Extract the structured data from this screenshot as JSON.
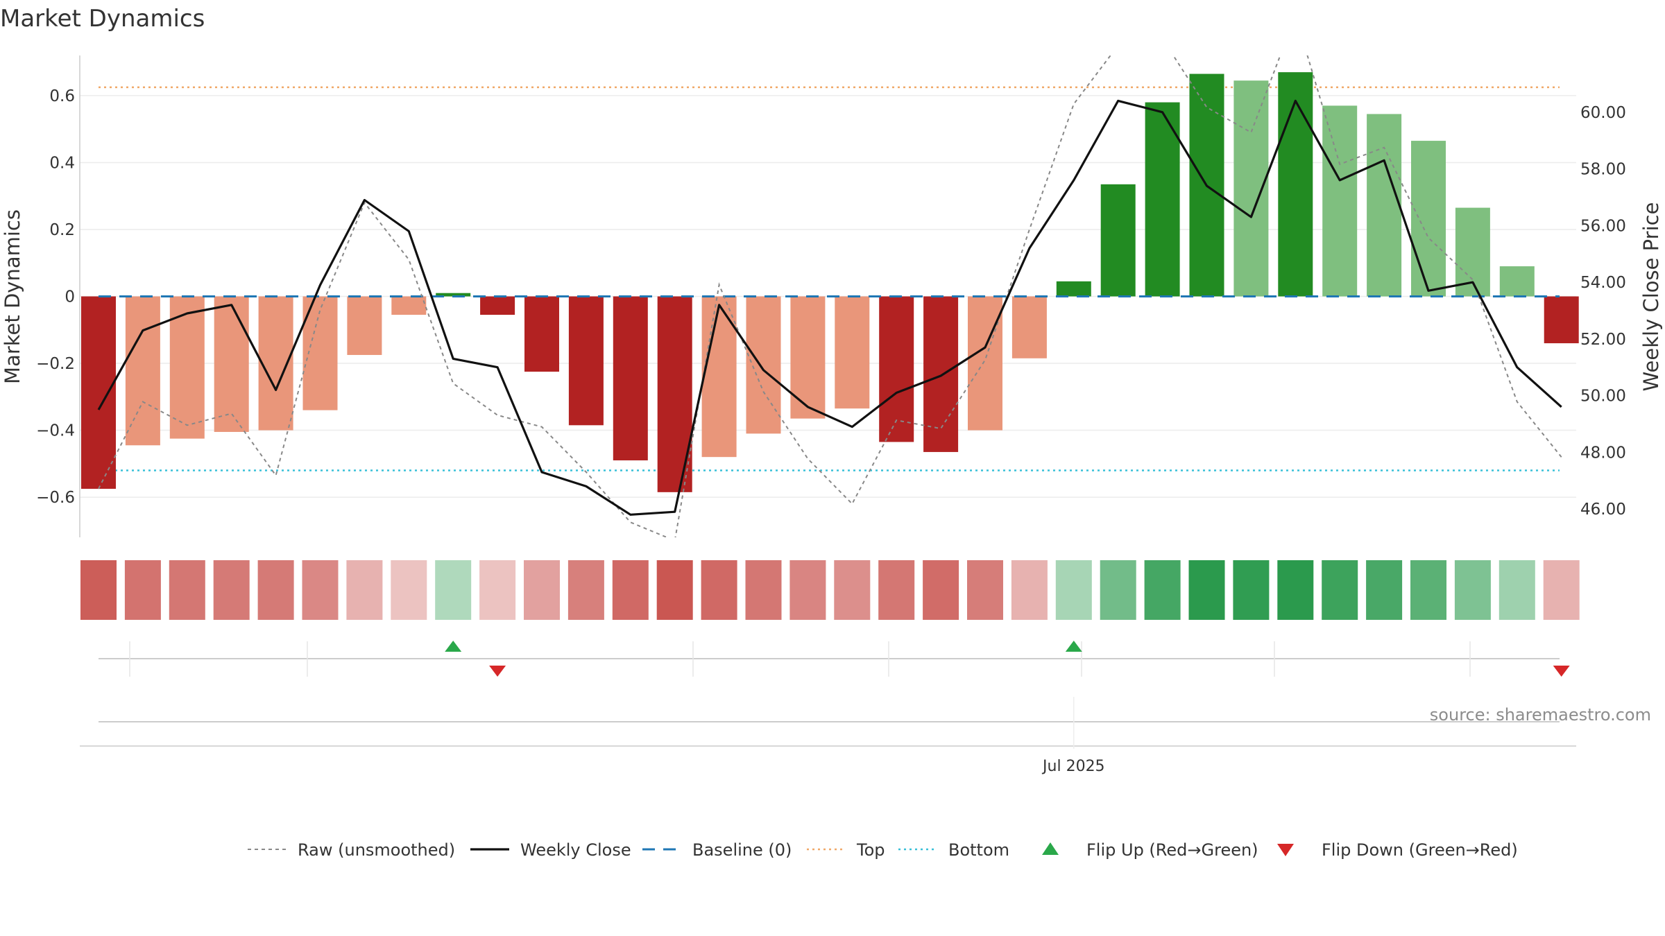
{
  "title": "Market Dynamics",
  "source": "source: sharemaestro.com",
  "colors": {
    "strong_red": "#B22222",
    "light_red": "#E9967A",
    "strong_green": "#228B22",
    "light_green": "#7FBF7F",
    "raw": "#888888",
    "close": "#111111",
    "baseline": "#1f77b4",
    "top": "#f0a868",
    "bottom": "#38c0d8",
    "flip_up": "#2aa84a",
    "flip_down": "#d62728"
  },
  "chart_data": {
    "type": "bar",
    "title": "Market Dynamics",
    "ylabel_left": "Market Dynamics",
    "ylabel_right": "Weekly Close Price",
    "ylim_left": [
      -0.72,
      0.72
    ],
    "ylim_right": [
      45,
      62
    ],
    "left_ticks": [
      "0.6",
      "0.4",
      "0.2",
      "0",
      "−0.2",
      "−0.4",
      "−0.6"
    ],
    "left_tick_values": [
      0.6,
      0.4,
      0.2,
      0,
      -0.2,
      -0.4,
      -0.6
    ],
    "right_ticks": [
      "60.00",
      "58.00",
      "56.00",
      "54.00",
      "52.00",
      "50.00",
      "48.00",
      "46.00"
    ],
    "right_tick_values": [
      60,
      58,
      56,
      54,
      52,
      50,
      48,
      46
    ],
    "x_tick_label": "Jul 2025",
    "x_tick_index": 22,
    "bars": [
      -0.575,
      -0.445,
      -0.425,
      -0.405,
      -0.4,
      -0.34,
      -0.175,
      -0.055,
      0.01,
      -0.055,
      -0.225,
      -0.385,
      -0.49,
      -0.585,
      -0.48,
      -0.41,
      -0.365,
      -0.335,
      -0.435,
      -0.465,
      -0.4,
      -0.185,
      0.045,
      0.335,
      0.58,
      0.665,
      0.645,
      0.67,
      0.57,
      0.545,
      0.465,
      0.265,
      0.09,
      -0.14
    ],
    "bar_styles": [
      "strong_red",
      "light_red",
      "light_red",
      "light_red",
      "light_red",
      "light_red",
      "light_red",
      "light_red",
      "strong_green",
      "strong_red",
      "strong_red",
      "strong_red",
      "strong_red",
      "strong_red",
      "light_red",
      "light_red",
      "light_red",
      "light_red",
      "strong_red",
      "strong_red",
      "light_red",
      "light_red",
      "strong_green",
      "strong_green",
      "strong_green",
      "strong_green",
      "light_green",
      "strong_green",
      "light_green",
      "light_green",
      "light_green",
      "light_green",
      "light_green",
      "strong_red"
    ],
    "weekly_close": [
      49.5,
      52.3,
      52.9,
      53.2,
      50.2,
      53.9,
      56.9,
      55.8,
      51.3,
      51.0,
      47.3,
      46.8,
      45.8,
      45.9,
      53.2,
      50.9,
      49.6,
      48.9,
      50.1,
      50.7,
      51.7,
      55.2,
      57.6,
      60.4,
      60.0,
      57.4,
      56.3,
      60.4,
      57.6,
      58.3,
      53.7,
      54.0,
      51.0,
      49.6
    ],
    "raw": [
      -0.575,
      -0.315,
      -0.385,
      -0.35,
      -0.535,
      -0.04,
      0.28,
      0.11,
      -0.26,
      -0.355,
      -0.39,
      -0.525,
      -0.675,
      -0.73,
      0.035,
      -0.285,
      -0.485,
      -0.62,
      -0.37,
      -0.395,
      -0.19,
      0.2,
      0.575,
      0.75,
      0.77,
      0.565,
      0.49,
      0.84,
      0.395,
      0.445,
      0.175,
      0.05,
      -0.315,
      -0.48
    ],
    "top": 0.625,
    "bottom": -0.52,
    "baseline": 0,
    "flip_up_indices": [
      8,
      22
    ],
    "flip_down_indices": [
      9,
      33
    ],
    "heatmap_intensity": [
      -0.9,
      -0.75,
      -0.72,
      -0.7,
      -0.7,
      -0.6,
      -0.3,
      -0.18,
      0.2,
      -0.18,
      -0.42,
      -0.66,
      -0.82,
      -0.95,
      -0.82,
      -0.72,
      -0.62,
      -0.55,
      -0.72,
      -0.8,
      -0.68,
      -0.3,
      0.25,
      0.55,
      0.8,
      0.95,
      0.92,
      0.95,
      0.85,
      0.78,
      0.68,
      0.48,
      0.3,
      -0.3
    ],
    "legend": [
      {
        "label": "Raw (unsmoothed)",
        "marker": "dotted-line"
      },
      {
        "label": "Weekly Close",
        "marker": "solid-line"
      },
      {
        "label": "Baseline (0)",
        "marker": "dashed-line"
      },
      {
        "label": "Top",
        "marker": "dotted-line"
      },
      {
        "label": "Bottom",
        "marker": "dotted-line"
      },
      {
        "label": "Flip Up (Red→Green)",
        "marker": "triangle-up"
      },
      {
        "label": "Flip Down (Green→Red)",
        "marker": "triangle-down"
      }
    ]
  }
}
